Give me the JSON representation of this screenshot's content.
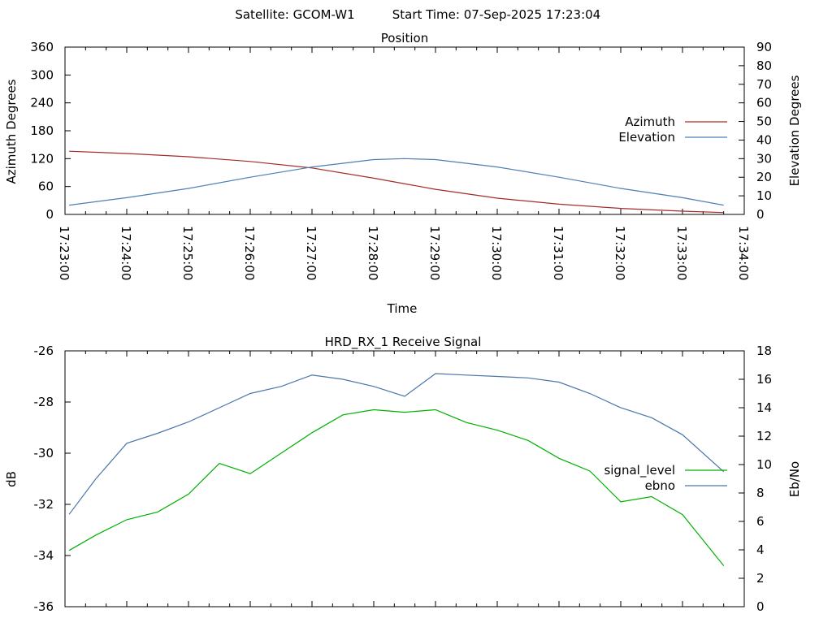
{
  "header": {
    "satellite_label": "Satellite: GCOM-W1",
    "start_label": "Start Time: 07-Sep-2025 17:23:04"
  },
  "colors": {
    "azimuth": "#a52a2a",
    "elevation": "#4a7fb5",
    "signal_level": "#00b000",
    "ebno": "#4a76aa"
  },
  "chart_data": [
    {
      "type": "line",
      "title": "Position",
      "xlabel": "Time",
      "ylabel": "Azimuth Degrees",
      "y2label": "Elevation Degrees",
      "xticks": [
        "17:23:00",
        "17:24:00",
        "17:25:00",
        "17:26:00",
        "17:27:00",
        "17:28:00",
        "17:29:00",
        "17:30:00",
        "17:31:00",
        "17:32:00",
        "17:33:00",
        "17:34:00"
      ],
      "xlim": [
        "17:23:00",
        "17:34:00"
      ],
      "ylim": [
        0,
        360
      ],
      "yticks": [
        0,
        60,
        120,
        180,
        240,
        300,
        360
      ],
      "y2lim": [
        0,
        90
      ],
      "y2ticks": [
        0,
        10,
        20,
        30,
        40,
        50,
        60,
        70,
        80,
        90
      ],
      "legend": "right",
      "series": [
        {
          "name": "Azimuth",
          "axis": "y1",
          "x": [
            "17:23:04",
            "17:24:00",
            "17:25:00",
            "17:26:00",
            "17:27:00",
            "17:28:00",
            "17:29:00",
            "17:30:00",
            "17:31:00",
            "17:32:00",
            "17:33:00",
            "17:33:40"
          ],
          "values": [
            136,
            131,
            124,
            114,
            100,
            78,
            54,
            35,
            22,
            13,
            7,
            4
          ]
        },
        {
          "name": "Elevation",
          "axis": "y2",
          "x": [
            "17:23:04",
            "17:24:00",
            "17:25:00",
            "17:26:00",
            "17:27:00",
            "17:28:00",
            "17:28:30",
            "17:29:00",
            "17:30:00",
            "17:31:00",
            "17:32:00",
            "17:33:00",
            "17:33:40"
          ],
          "values": [
            5,
            9,
            14,
            20,
            25.5,
            29.5,
            30,
            29.5,
            25.5,
            20,
            14,
            9,
            5
          ]
        }
      ]
    },
    {
      "type": "line",
      "title": "HRD_RX_1 Receive Signal",
      "ylabel": "dB",
      "y2label": "Eb/No",
      "xlim": [
        "17:23:00",
        "17:34:00"
      ],
      "ylim": [
        -36,
        -26
      ],
      "yticks": [
        -36,
        -34,
        -32,
        -30,
        -28,
        -26
      ],
      "y2lim": [
        0,
        18
      ],
      "y2ticks": [
        0,
        2,
        4,
        6,
        8,
        10,
        12,
        14,
        16,
        18
      ],
      "legend": "right",
      "series": [
        {
          "name": "signal_level",
          "axis": "y1",
          "x": [
            "17:23:04",
            "17:23:30",
            "17:24:00",
            "17:24:30",
            "17:25:00",
            "17:25:30",
            "17:26:00",
            "17:26:30",
            "17:27:00",
            "17:27:30",
            "17:28:00",
            "17:28:30",
            "17:29:00",
            "17:29:30",
            "17:30:00",
            "17:30:30",
            "17:31:00",
            "17:31:30",
            "17:32:00",
            "17:32:30",
            "17:33:00",
            "17:33:40"
          ],
          "values": [
            -33.8,
            -33.2,
            -32.6,
            -32.3,
            -31.6,
            -30.4,
            -30.8,
            -30.0,
            -29.2,
            -28.5,
            -28.3,
            -28.4,
            -28.3,
            -28.8,
            -29.1,
            -29.5,
            -30.2,
            -30.7,
            -31.9,
            -31.7,
            -32.4,
            -34.4
          ]
        },
        {
          "name": "ebno",
          "axis": "y2",
          "x": [
            "17:23:04",
            "17:23:30",
            "17:24:00",
            "17:24:30",
            "17:25:00",
            "17:25:30",
            "17:26:00",
            "17:26:30",
            "17:27:00",
            "17:27:30",
            "17:28:00",
            "17:28:30",
            "17:29:00",
            "17:29:30",
            "17:30:00",
            "17:30:30",
            "17:31:00",
            "17:31:30",
            "17:32:00",
            "17:32:30",
            "17:33:00",
            "17:33:40"
          ],
          "values": [
            6.5,
            9.0,
            11.5,
            12.2,
            13.0,
            14.0,
            15.0,
            15.5,
            16.3,
            16.0,
            15.5,
            14.8,
            16.4,
            16.3,
            16.2,
            16.1,
            15.8,
            15.0,
            14.0,
            13.3,
            12.1,
            9.5
          ]
        }
      ]
    }
  ]
}
